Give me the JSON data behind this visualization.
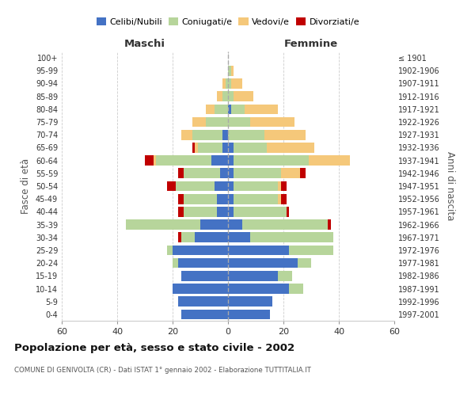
{
  "age_groups": [
    "0-4",
    "5-9",
    "10-14",
    "15-19",
    "20-24",
    "25-29",
    "30-34",
    "35-39",
    "40-44",
    "45-49",
    "50-54",
    "55-59",
    "60-64",
    "65-69",
    "70-74",
    "75-79",
    "80-84",
    "85-89",
    "90-94",
    "95-99",
    "100+"
  ],
  "birth_years": [
    "1997-2001",
    "1992-1996",
    "1987-1991",
    "1982-1986",
    "1977-1981",
    "1972-1976",
    "1967-1971",
    "1962-1966",
    "1957-1961",
    "1952-1956",
    "1947-1951",
    "1942-1946",
    "1937-1941",
    "1932-1936",
    "1927-1931",
    "1922-1926",
    "1917-1921",
    "1912-1916",
    "1907-1911",
    "1902-1906",
    "≤ 1901"
  ],
  "males": {
    "celibi": [
      17,
      18,
      20,
      17,
      18,
      20,
      12,
      10,
      4,
      4,
      5,
      3,
      6,
      2,
      2,
      0,
      0,
      0,
      0,
      0,
      0
    ],
    "coniugati": [
      0,
      0,
      0,
      0,
      2,
      2,
      5,
      27,
      12,
      12,
      14,
      13,
      20,
      9,
      11,
      8,
      5,
      2,
      1,
      0,
      0
    ],
    "vedovi": [
      0,
      0,
      0,
      0,
      0,
      0,
      0,
      0,
      0,
      0,
      0,
      0,
      1,
      1,
      4,
      5,
      3,
      2,
      1,
      0,
      0
    ],
    "divorziati": [
      0,
      0,
      0,
      0,
      0,
      0,
      1,
      0,
      2,
      2,
      3,
      2,
      3,
      1,
      0,
      0,
      0,
      0,
      0,
      0,
      0
    ]
  },
  "females": {
    "nubili": [
      15,
      16,
      22,
      18,
      25,
      22,
      8,
      5,
      2,
      2,
      2,
      2,
      2,
      2,
      0,
      0,
      1,
      0,
      0,
      0,
      0
    ],
    "coniugate": [
      0,
      0,
      5,
      5,
      5,
      16,
      30,
      31,
      19,
      16,
      16,
      17,
      27,
      12,
      13,
      8,
      5,
      2,
      1,
      1,
      0
    ],
    "vedove": [
      0,
      0,
      0,
      0,
      0,
      0,
      0,
      0,
      0,
      1,
      1,
      7,
      15,
      17,
      15,
      16,
      12,
      7,
      4,
      1,
      0
    ],
    "divorziate": [
      0,
      0,
      0,
      0,
      0,
      0,
      0,
      1,
      1,
      2,
      2,
      2,
      0,
      0,
      0,
      0,
      0,
      0,
      0,
      0,
      0
    ]
  },
  "color_celibi": "#4472c4",
  "color_coniugati": "#b7d59b",
  "color_vedovi": "#f5c87a",
  "color_divorziati": "#c00000",
  "xlim": 60,
  "title": "Popolazione per età, sesso e stato civile - 2002",
  "subtitle": "COMUNE DI GENIVOLTA (CR) - Dati ISTAT 1° gennaio 2002 - Elaborazione TUTTITALIA.IT",
  "ylabel_left": "Fasce di età",
  "ylabel_right": "Anni di nascita",
  "header_left": "Maschi",
  "header_right": "Femmine",
  "bg_color": "#ffffff",
  "grid_color": "#cccccc"
}
